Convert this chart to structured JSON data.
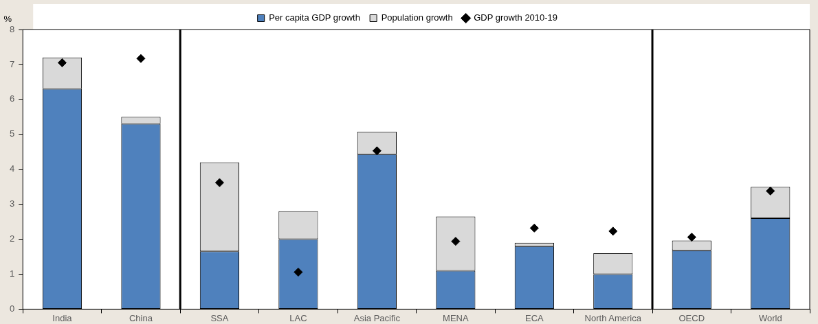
{
  "chart_data": {
    "type": "bar",
    "stacked": true,
    "ylabel": "%",
    "legend": "top",
    "grid": false,
    "categories": [
      "India",
      "China",
      "SSA",
      "LAC",
      "Asia Pacific",
      "MENA",
      "ECA",
      "North America",
      "OECD",
      "World"
    ],
    "ylim": [
      0,
      8
    ],
    "yticks": [
      0,
      1,
      2,
      3,
      4,
      5,
      6,
      7,
      8
    ],
    "series": [
      {
        "name": "Per capita GDP growth",
        "color": "#4f81bd",
        "values": [
          6.3,
          5.3,
          1.65,
          2.0,
          4.43,
          1.1,
          1.8,
          1.0,
          1.68,
          2.6
        ]
      },
      {
        "name": "Population growth",
        "color": "#d9d9d9",
        "values": [
          0.9,
          0.2,
          2.55,
          0.8,
          0.65,
          1.55,
          0.1,
          0.6,
          0.28,
          0.9
        ]
      },
      {
        "name": "GDP growth 2010-19",
        "type": "scatter",
        "marker": "diamond",
        "color": "#000000",
        "values": [
          7.05,
          7.17,
          3.62,
          1.06,
          4.53,
          1.94,
          2.32,
          2.23,
          2.06,
          3.38
        ]
      }
    ]
  }
}
